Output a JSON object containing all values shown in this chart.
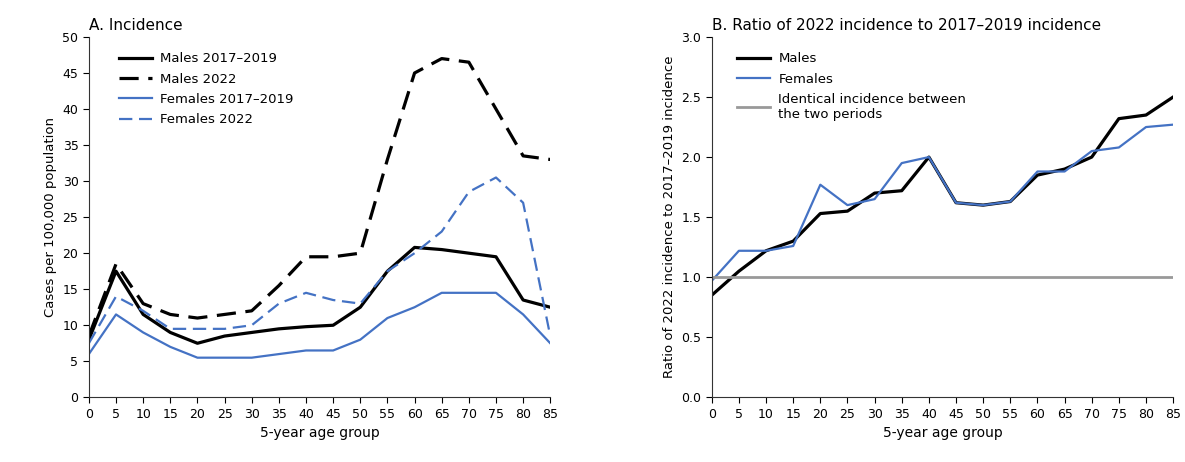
{
  "age_groups": [
    0,
    5,
    10,
    15,
    20,
    25,
    30,
    35,
    40,
    45,
    50,
    55,
    60,
    65,
    70,
    75,
    80,
    85
  ],
  "males_2017_2019": [
    8.0,
    17.5,
    11.5,
    9.0,
    7.5,
    8.5,
    9.0,
    9.5,
    9.8,
    10.0,
    12.5,
    17.5,
    20.8,
    20.5,
    20.0,
    19.5,
    13.5,
    12.5
  ],
  "males_2022": [
    8.5,
    18.5,
    13.0,
    11.5,
    11.0,
    11.5,
    12.0,
    15.5,
    19.5,
    19.5,
    20.0,
    33.0,
    45.0,
    47.0,
    46.5,
    40.0,
    33.5,
    33.0
  ],
  "females_2017_2019": [
    6.0,
    11.5,
    9.0,
    7.0,
    5.5,
    5.5,
    5.5,
    6.0,
    6.5,
    6.5,
    8.0,
    11.0,
    12.5,
    14.5,
    14.5,
    14.5,
    11.5,
    7.5
  ],
  "females_2022": [
    7.5,
    14.0,
    12.0,
    9.5,
    9.5,
    9.5,
    10.0,
    13.0,
    14.5,
    13.5,
    13.0,
    17.5,
    20.0,
    23.0,
    28.5,
    30.5,
    27.0,
    8.5
  ],
  "ratio_males": [
    0.85,
    1.05,
    1.22,
    1.3,
    1.53,
    1.55,
    1.7,
    1.72,
    2.0,
    1.62,
    1.6,
    1.63,
    1.85,
    1.9,
    2.0,
    2.32,
    2.35,
    2.5
  ],
  "ratio_females": [
    0.97,
    1.22,
    1.22,
    1.26,
    1.77,
    1.6,
    1.65,
    1.95,
    2.0,
    1.62,
    1.6,
    1.63,
    1.88,
    1.88,
    2.05,
    2.08,
    2.25,
    2.27
  ],
  "panel_a_title": "A. Incidence",
  "panel_b_title": "B. Ratio of 2022 incidence to 2017–2019 incidence",
  "xlabel": "5-year age group",
  "ylabel_a": "Cases per 100,000 population",
  "ylabel_b": "Ratio of 2022 incidence to 2017–2019 incidence",
  "ylim_a": [
    0,
    50
  ],
  "ylim_b": [
    0.0,
    3.0
  ],
  "yticks_a": [
    0,
    5,
    10,
    15,
    20,
    25,
    30,
    35,
    40,
    45,
    50
  ],
  "yticks_b": [
    0.0,
    0.5,
    1.0,
    1.5,
    2.0,
    2.5,
    3.0
  ],
  "legend_a": [
    "Males 2017–2019",
    "Males 2022",
    "Females 2017–2019",
    "Females 2022"
  ],
  "legend_b": [
    "Males",
    "Females",
    "Identical incidence between\nthe two periods"
  ],
  "male_color": "#000000",
  "female_color": "#4472c4",
  "ref_line_color": "#999999",
  "background_color": "#ffffff"
}
